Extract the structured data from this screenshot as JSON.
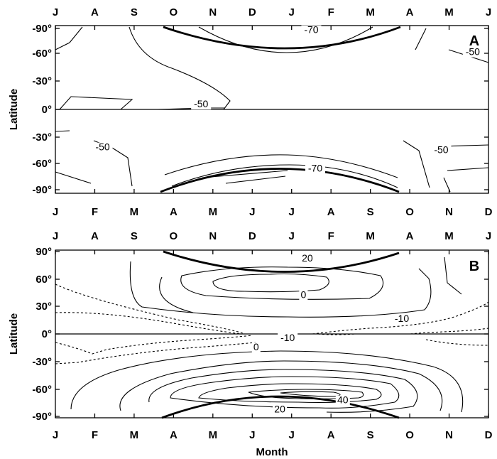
{
  "chart_data": [
    {
      "type": "contour",
      "panel_label": "A",
      "xlabel": "",
      "ylabel": "Latitude",
      "x_top_ticks": [
        "J",
        "A",
        "S",
        "O",
        "N",
        "D",
        "J",
        "F",
        "M",
        "A",
        "M",
        "J"
      ],
      "x_bottom_ticks": [
        "J",
        "F",
        "M",
        "A",
        "M",
        "J",
        "J",
        "A",
        "S",
        "O",
        "N",
        "D"
      ],
      "y_upper_ticks": [
        "-90°",
        "-60°",
        "-30°",
        "0°"
      ],
      "y_lower_ticks": [
        "-30°",
        "-60°",
        "-90°"
      ],
      "contour_labels": [
        {
          "text": "-70",
          "month": 6.5,
          "lat": 84,
          "half": "upper"
        },
        {
          "text": "-50",
          "month": 10.6,
          "lat": 60,
          "half": "upper"
        },
        {
          "text": "-50",
          "month": 3.7,
          "lat": 3,
          "half": "upper"
        },
        {
          "text": "-50",
          "month": 1.2,
          "lat": 44,
          "half": "lower"
        },
        {
          "text": "-70",
          "month": 6.6,
          "lat": 67,
          "half": "lower"
        },
        {
          "text": "-50",
          "month": 9.8,
          "lat": 47,
          "half": "lower"
        }
      ]
    },
    {
      "type": "contour",
      "panel_label": "B",
      "xlabel": "Month",
      "ylabel": "Latitude",
      "x_top_ticks": [
        "J",
        "A",
        "S",
        "O",
        "N",
        "D",
        "J",
        "F",
        "M",
        "A",
        "M",
        "J"
      ],
      "x_bottom_ticks": [
        "J",
        "F",
        "M",
        "A",
        "M",
        "J",
        "J",
        "A",
        "S",
        "O",
        "N",
        "D"
      ],
      "y_ticks": [
        "90°",
        "60°",
        "30°",
        "0°",
        "-30°",
        "-60°",
        "-90°"
      ],
      "contour_labels": [
        {
          "text": "20",
          "month": 6.4,
          "lat": 80
        },
        {
          "text": "0",
          "month": 6.3,
          "lat": 40
        },
        {
          "text": "-10",
          "month": 8.8,
          "lat": 14
        },
        {
          "text": "-10",
          "month": 5.9,
          "lat": -7
        },
        {
          "text": "0",
          "month": 5.1,
          "lat": -17
        },
        {
          "text": "40",
          "month": 7.3,
          "lat": -75
        },
        {
          "text": "20",
          "month": 5.7,
          "lat": -85
        }
      ]
    }
  ]
}
